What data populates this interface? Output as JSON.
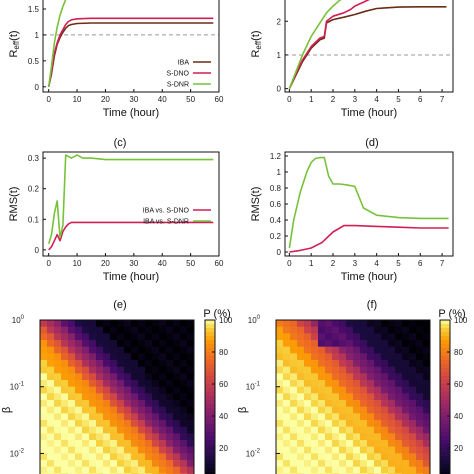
{
  "panel_labels": {
    "c": "(c)",
    "d": "(d)",
    "e": "(e)",
    "f": "(f)"
  },
  "colors": {
    "iba": "#6b2d14",
    "sdno": "#d11f55",
    "sdnr": "#77c23a",
    "ref": "#999999"
  },
  "chart_data": [
    {
      "id": "reff_left",
      "type": "line",
      "title": "",
      "xlabel": "Time (hour)",
      "ylabel": "R",
      "ylabel_sub": "eff",
      "ylabel_tail": "(t)",
      "xlim": [
        -2,
        60
      ],
      "ylim": [
        -0.1,
        1.75
      ],
      "xticks": [
        "0",
        "10",
        "20",
        "30",
        "40",
        "50",
        "60"
      ],
      "yticks": [
        "0",
        "0.5",
        "1",
        "1.5"
      ],
      "reference_line": 1,
      "legend": "lower-right",
      "series": [
        {
          "name": "IBA",
          "color": "#6b2d14",
          "x": [
            0,
            1,
            2,
            3,
            4,
            5,
            6,
            7,
            8,
            10,
            15,
            20,
            30,
            40,
            50,
            58
          ],
          "y": [
            0,
            0.25,
            0.6,
            0.82,
            0.95,
            1.05,
            1.13,
            1.18,
            1.2,
            1.22,
            1.23,
            1.23,
            1.23,
            1.23,
            1.23,
            1.23
          ]
        },
        {
          "name": "S-DNO",
          "color": "#d11f55",
          "x": [
            0,
            1,
            2,
            3,
            4,
            5,
            6,
            7,
            8,
            10,
            15,
            20,
            30,
            40,
            50,
            58
          ],
          "y": [
            0,
            0.3,
            0.65,
            0.85,
            1.0,
            1.1,
            1.2,
            1.26,
            1.29,
            1.31,
            1.32,
            1.32,
            1.32,
            1.32,
            1.32,
            1.32
          ]
        },
        {
          "name": "S-DNR",
          "color": "#77c23a",
          "x": [
            0,
            1,
            2,
            3,
            4,
            5,
            6,
            7,
            8,
            10,
            15,
            20,
            30,
            40,
            50,
            58
          ],
          "y": [
            0,
            0.4,
            0.85,
            1.15,
            1.38,
            1.55,
            1.68,
            1.74,
            1.74,
            1.74,
            1.74,
            1.74,
            1.74,
            1.74,
            1.74,
            1.74
          ]
        }
      ]
    },
    {
      "id": "reff_right",
      "type": "line",
      "title": "",
      "xlabel": "Time (hour)",
      "ylabel": "R",
      "ylabel_sub": "eff",
      "ylabel_tail": "(t)",
      "xlim": [
        -0.2,
        7.5
      ],
      "ylim": [
        -0.1,
        2.75
      ],
      "xticks": [
        "0",
        "1",
        "2",
        "3",
        "4",
        "5",
        "6",
        "7"
      ],
      "yticks": [
        "0",
        "1",
        "2"
      ],
      "reference_line": 1,
      "series": [
        {
          "name": "IBA",
          "color": "#6b2d14",
          "x": [
            0,
            0.3,
            0.6,
            1.0,
            1.4,
            1.6,
            1.7,
            2.0,
            2.5,
            3.0,
            3.5,
            4.0,
            5.0,
            6.0,
            7.2
          ],
          "y": [
            0,
            0.4,
            0.8,
            1.2,
            1.45,
            1.5,
            1.95,
            2.05,
            2.12,
            2.2,
            2.3,
            2.38,
            2.42,
            2.43,
            2.43
          ]
        },
        {
          "name": "S-DNO",
          "color": "#d11f55",
          "x": [
            0,
            0.3,
            0.6,
            1.0,
            1.4,
            1.6,
            1.7,
            2.0,
            2.5,
            2.8,
            3.0,
            3.5,
            4.0
          ],
          "y": [
            0,
            0.45,
            0.85,
            1.25,
            1.5,
            1.55,
            2.0,
            2.15,
            2.25,
            2.35,
            2.45,
            2.6,
            2.75
          ]
        },
        {
          "name": "S-DNR",
          "color": "#77c23a",
          "x": [
            0,
            0.3,
            0.6,
            1.0,
            1.4,
            1.7,
            2.0,
            2.3,
            2.6
          ],
          "y": [
            0,
            0.5,
            1.0,
            1.55,
            1.95,
            2.25,
            2.45,
            2.62,
            2.75
          ]
        }
      ]
    },
    {
      "id": "rms_left",
      "type": "line",
      "title": "",
      "xlabel": "Time (hour)",
      "ylabel": "RMS(t)",
      "xlim": [
        -2,
        60
      ],
      "ylim": [
        -0.02,
        0.32
      ],
      "xticks": [
        "0",
        "10",
        "20",
        "30",
        "40",
        "50",
        "60"
      ],
      "yticks": [
        "0",
        "0.1",
        "0.2",
        "0.3"
      ],
      "legend": "center-right",
      "series": [
        {
          "name": "IBA vs. S-DNO",
          "color": "#d11f55",
          "x": [
            0,
            1,
            2,
            3,
            4,
            5,
            6,
            7,
            8,
            10,
            15,
            20,
            30,
            40,
            50,
            58
          ],
          "y": [
            0,
            0.01,
            0.03,
            0.05,
            0.03,
            0.06,
            0.075,
            0.085,
            0.09,
            0.09,
            0.09,
            0.09,
            0.09,
            0.09,
            0.09,
            0.09
          ]
        },
        {
          "name": "IBA vs. S-DNR",
          "color": "#77c23a",
          "x": [
            0,
            1,
            2,
            3,
            4,
            5,
            6,
            7,
            8,
            10,
            12,
            15,
            20,
            30,
            40,
            50,
            58
          ],
          "y": [
            0.02,
            0.05,
            0.12,
            0.16,
            0.04,
            0.08,
            0.31,
            0.305,
            0.3,
            0.31,
            0.3,
            0.3,
            0.295,
            0.295,
            0.295,
            0.295,
            0.295
          ]
        }
      ]
    },
    {
      "id": "rms_right",
      "type": "line",
      "title": "",
      "xlabel": "Time (hour)",
      "ylabel": "RMS(t)",
      "xlim": [
        -0.2,
        7.5
      ],
      "ylim": [
        -0.05,
        1.25
      ],
      "xticks": [
        "0",
        "1",
        "2",
        "3",
        "4",
        "5",
        "6",
        "7"
      ],
      "yticks": [
        "0",
        "0.2",
        "0.4",
        "0.6",
        "0.8",
        "1",
        "1.2"
      ],
      "series": [
        {
          "name": "IBA vs. S-DNO",
          "color": "#d11f55",
          "x": [
            0,
            0.5,
            1.0,
            1.5,
            2.0,
            2.5,
            3.0,
            4.0,
            5.0,
            6.0,
            7.3
          ],
          "y": [
            0,
            0.02,
            0.05,
            0.12,
            0.25,
            0.33,
            0.33,
            0.32,
            0.31,
            0.3,
            0.3
          ]
        },
        {
          "name": "IBA vs. S-DNR",
          "color": "#77c23a",
          "x": [
            0,
            0.2,
            0.5,
            0.8,
            1.0,
            1.2,
            1.4,
            1.6,
            1.8,
            2.0,
            2.3,
            2.6,
            3.0,
            3.4,
            4.0,
            5.0,
            6.0,
            7.3
          ],
          "y": [
            0.05,
            0.4,
            0.75,
            1.0,
            1.12,
            1.17,
            1.18,
            1.18,
            0.95,
            0.85,
            0.85,
            0.84,
            0.82,
            0.55,
            0.46,
            0.43,
            0.42,
            0.42
          ]
        }
      ]
    },
    {
      "id": "heatmap_e",
      "type": "heatmap",
      "title": "",
      "ylabel": "β",
      "colorbar_label": "P (%)",
      "colorbar_ticks": [
        "20",
        "40",
        "60",
        "80",
        "100"
      ],
      "clim": [
        0,
        100
      ],
      "ylim_log": [
        0.004,
        1
      ],
      "yticks": [
        "10",
        "10",
        "10"
      ],
      "ytick_exps": [
        "0",
        "-1",
        "-2"
      ]
    },
    {
      "id": "heatmap_f",
      "type": "heatmap",
      "title": "",
      "ylabel": "β",
      "colorbar_label": "P (%)",
      "colorbar_ticks": [
        "20",
        "40",
        "60",
        "80",
        "100"
      ],
      "clim": [
        0,
        100
      ],
      "ylim_log": [
        0.004,
        1
      ],
      "yticks": [
        "10",
        "10",
        "10"
      ],
      "ytick_exps": [
        "0",
        "-1",
        "-2"
      ]
    }
  ]
}
